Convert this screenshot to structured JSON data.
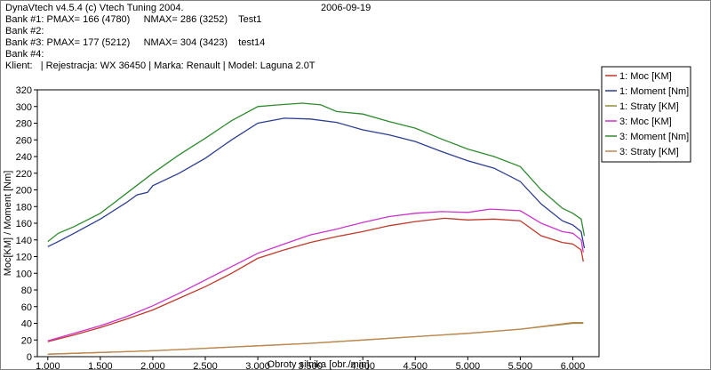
{
  "header": {
    "app": "DynaVtech v4.5.4 (c) Vtech Tuning 2004.",
    "date": "2006-09-19",
    "bank1": "Bank #1: PMAX= 166 (4780)     NMAX= 286 (3252)    Test1",
    "bank2": "Bank #2:",
    "bank3": "Bank #3: PMAX= 177 (5212)     NMAX= 304 (3423)    test14",
    "bank4": "Bank #4:",
    "client": "Klient:   | Rejestracja: WX 36450 | Marka: Renault | Model: Laguna 2.0T"
  },
  "chart_data": {
    "type": "line",
    "xlabel": "Obroty silnika [obr./min]",
    "ylabel": "Moc[KM] / Moment [Nm]",
    "xlim": [
      900,
      6250
    ],
    "ylim": [
      0,
      320
    ],
    "x_ticks": [
      1000,
      1500,
      2000,
      2500,
      3000,
      3500,
      4000,
      4500,
      5000,
      5500,
      6000
    ],
    "x_tick_labels": [
      "1.000",
      "1.500",
      "2.000",
      "2.500",
      "3.000",
      "3.500",
      "4.000",
      "4.500",
      "5.000",
      "5.500",
      "6.000"
    ],
    "y_ticks": [
      0,
      20,
      40,
      60,
      80,
      100,
      120,
      140,
      160,
      180,
      200,
      220,
      240,
      260,
      280,
      300,
      320
    ],
    "grid": false,
    "legend_position": "right",
    "series": [
      {
        "name": "1: Moc [KM]",
        "color": "#c0392b",
        "x": [
          1000,
          1250,
          1500,
          1750,
          2000,
          2250,
          2500,
          2750,
          3000,
          3250,
          3500,
          3750,
          4000,
          4250,
          4500,
          4780,
          5000,
          5250,
          5500,
          5700,
          5900,
          6000,
          6080,
          6100
        ],
        "y": [
          18,
          26,
          35,
          45,
          56,
          70,
          84,
          100,
          118,
          128,
          137,
          144,
          150,
          157,
          162,
          166,
          164,
          165,
          163,
          145,
          137,
          135,
          128,
          114
        ]
      },
      {
        "name": "1: Moment [Nm]",
        "color": "#2c3e90",
        "x": [
          1000,
          1100,
          1250,
          1500,
          1750,
          1850,
          1950,
          2000,
          2250,
          2500,
          2750,
          3000,
          3252,
          3500,
          3750,
          4000,
          4250,
          4500,
          4750,
          5000,
          5250,
          5500,
          5700,
          5900,
          6000,
          6080,
          6110
        ],
        "y": [
          132,
          138,
          148,
          165,
          185,
          194,
          197,
          205,
          220,
          238,
          260,
          280,
          286,
          285,
          281,
          272,
          266,
          258,
          246,
          235,
          226,
          210,
          183,
          163,
          158,
          150,
          130
        ]
      },
      {
        "name": "1: Straty [KM]",
        "color": "#8c8c3a",
        "x": [
          1000,
          1500,
          2000,
          2500,
          3000,
          3500,
          4000,
          4500,
          5000,
          5500,
          6000,
          6100
        ],
        "y": [
          3,
          5,
          7,
          10,
          13,
          16,
          20,
          24,
          28,
          33,
          40,
          40
        ]
      },
      {
        "name": "3: Moc [KM]",
        "color": "#cc33cc",
        "x": [
          1000,
          1250,
          1500,
          1750,
          2000,
          2250,
          2500,
          2750,
          3000,
          3250,
          3500,
          3750,
          4000,
          4250,
          4500,
          4750,
          5000,
          5212,
          5500,
          5700,
          5900,
          6000,
          6080,
          6100
        ],
        "y": [
          19,
          28,
          37,
          48,
          61,
          76,
          92,
          108,
          124,
          135,
          146,
          153,
          161,
          168,
          172,
          174,
          173,
          177,
          175,
          160,
          150,
          148,
          140,
          125
        ]
      },
      {
        "name": "3: Moment [Nm]",
        "color": "#2e8b2e",
        "x": [
          1000,
          1100,
          1250,
          1500,
          1750,
          2000,
          2250,
          2500,
          2750,
          3000,
          3200,
          3423,
          3600,
          3750,
          4000,
          4250,
          4500,
          4750,
          5000,
          5250,
          5500,
          5700,
          5900,
          6000,
          6080,
          6110
        ],
        "y": [
          138,
          148,
          156,
          172,
          196,
          220,
          242,
          262,
          283,
          300,
          302,
          304,
          302,
          294,
          291,
          282,
          274,
          261,
          249,
          240,
          228,
          200,
          178,
          172,
          165,
          145
        ]
      },
      {
        "name": "3: Straty [KM]",
        "color": "#c08850",
        "x": [
          1000,
          1500,
          2000,
          2500,
          3000,
          3500,
          4000,
          4500,
          5000,
          5500,
          6000,
          6100
        ],
        "y": [
          3,
          5,
          7,
          10,
          13,
          16,
          20,
          24,
          28,
          33,
          41,
          41
        ]
      }
    ]
  }
}
